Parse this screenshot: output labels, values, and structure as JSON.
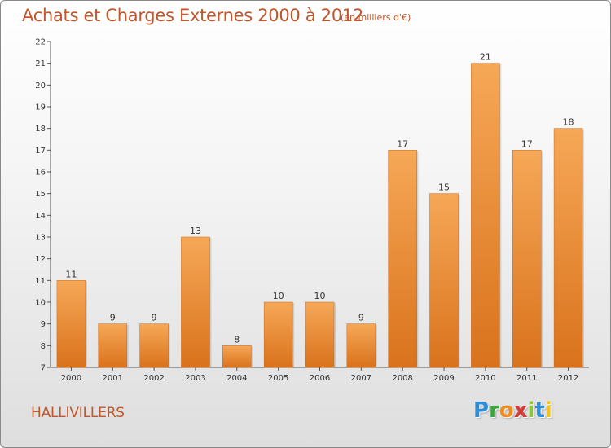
{
  "header": {
    "title": "Achats et Charges Externes 2000 à 2012",
    "subtitle": "(en milliers d'€)"
  },
  "footer": {
    "town": "HALLIVILLERS",
    "logo_letters": [
      {
        "char": "P",
        "color": "#2f8fd6"
      },
      {
        "char": "r",
        "color": "#3aa53a"
      },
      {
        "char": "o",
        "color": "#f28a1e"
      },
      {
        "char": "x",
        "color": "#d63a3a"
      },
      {
        "char": "i",
        "color": "#8cc63f"
      },
      {
        "char": "t",
        "color": "#2f8fd6"
      },
      {
        "char": "i",
        "color": "#f2c21e"
      }
    ]
  },
  "colors": {
    "bar_light": "#f6a857",
    "bar_dark": "#d9721c",
    "text_accent": "#c0562a"
  },
  "chart_data": {
    "type": "bar",
    "categories": [
      "2000",
      "2001",
      "2002",
      "2003",
      "2004",
      "2005",
      "2006",
      "2007",
      "2008",
      "2009",
      "2010",
      "2011",
      "2012"
    ],
    "values": [
      11,
      9,
      9,
      13,
      8,
      10,
      10,
      9,
      17,
      15,
      21,
      17,
      18
    ],
    "title": "Achats et Charges Externes 2000 à 2012",
    "xlabel": "",
    "ylabel": "",
    "ylim": [
      7,
      22
    ],
    "yticks": [
      7,
      8,
      9,
      10,
      11,
      12,
      13,
      14,
      15,
      16,
      17,
      18,
      19,
      20,
      21,
      22
    ],
    "grid": false
  }
}
